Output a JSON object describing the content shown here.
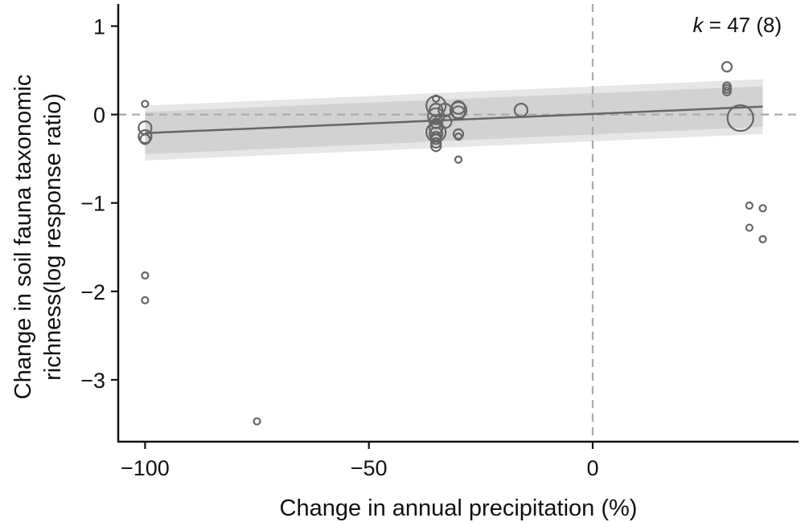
{
  "chart_data": {
    "type": "scatter",
    "xlabel": "Change in annual precipitation (%)",
    "ylabel_lines": [
      "Change in soil fauna taxonomic",
      "richness(log response ratio)"
    ],
    "xlim": [
      -106,
      46
    ],
    "ylim": [
      -3.7,
      1.25
    ],
    "x_ticks": [
      -100,
      -50,
      0
    ],
    "x_tick_labels": [
      "−100",
      "−50",
      "0"
    ],
    "y_ticks": [
      1,
      0,
      -1,
      -2,
      -3
    ],
    "y_tick_labels": [
      "1",
      "0",
      "−1",
      "−2",
      "−3"
    ],
    "annotation": {
      "k_label": "k",
      "text": " = 47 (8)"
    },
    "reference_lines": {
      "x": 0,
      "y": 0,
      "style": "dashed"
    },
    "colors": {
      "points": "#666666",
      "fit_line": "#666666",
      "ci_outer": "#e6e6e6",
      "ci_inner": "#d2d2d2",
      "reference": "#aaaaaa",
      "axis": "#111111"
    },
    "fit_line": {
      "x": [
        -100,
        38
      ],
      "y": [
        -0.21,
        0.09
      ]
    },
    "ci_outer": {
      "x": [
        -100,
        38
      ],
      "lower": [
        -0.52,
        -0.22
      ],
      "upper": [
        0.1,
        0.4
      ]
    },
    "ci_inner": {
      "x": [
        -100,
        38
      ],
      "lower": [
        -0.45,
        -0.14
      ],
      "upper": [
        0.03,
        0.32
      ]
    },
    "points": [
      {
        "x": -100,
        "y": 0.12,
        "size": 1
      },
      {
        "x": -100,
        "y": -0.15,
        "size": 2
      },
      {
        "x": -100,
        "y": -0.25,
        "size": 2
      },
      {
        "x": -100,
        "y": -0.28,
        "size": 1.5
      },
      {
        "x": -100,
        "y": -1.82,
        "size": 1
      },
      {
        "x": -100,
        "y": -2.1,
        "size": 1
      },
      {
        "x": -75,
        "y": -3.47,
        "size": 1
      },
      {
        "x": -35,
        "y": 0.18,
        "size": 1
      },
      {
        "x": -35,
        "y": 0.1,
        "size": 3
      },
      {
        "x": -35,
        "y": 0.05,
        "size": 2
      },
      {
        "x": -35,
        "y": -0.02,
        "size": 2.5
      },
      {
        "x": -35,
        "y": -0.08,
        "size": 2
      },
      {
        "x": -35,
        "y": -0.1,
        "size": 1.5
      },
      {
        "x": -35,
        "y": -0.15,
        "size": 2
      },
      {
        "x": -35,
        "y": -0.2,
        "size": 3
      },
      {
        "x": -35,
        "y": -0.22,
        "size": 2
      },
      {
        "x": -35,
        "y": -0.25,
        "size": 1.5
      },
      {
        "x": -35,
        "y": -0.28,
        "size": 1.5
      },
      {
        "x": -35,
        "y": -0.32,
        "size": 1.5
      },
      {
        "x": -35,
        "y": -0.36,
        "size": 1.5
      },
      {
        "x": -33,
        "y": 0.05,
        "size": 2
      },
      {
        "x": -33,
        "y": -0.08,
        "size": 2
      },
      {
        "x": -30,
        "y": 0.08,
        "size": 2
      },
      {
        "x": -30,
        "y": 0.05,
        "size": 2.5
      },
      {
        "x": -30,
        "y": 0.02,
        "size": 2
      },
      {
        "x": -30,
        "y": -0.22,
        "size": 1.5
      },
      {
        "x": -30,
        "y": -0.25,
        "size": 1
      },
      {
        "x": -30,
        "y": -0.51,
        "size": 1
      },
      {
        "x": -16,
        "y": 0.05,
        "size": 2
      },
      {
        "x": 30,
        "y": 0.54,
        "size": 1.5
      },
      {
        "x": 30,
        "y": 0.32,
        "size": 1.2
      },
      {
        "x": 30,
        "y": 0.29,
        "size": 1.2
      },
      {
        "x": 30,
        "y": 0.26,
        "size": 1.2
      },
      {
        "x": 33,
        "y": -0.04,
        "size": 4
      },
      {
        "x": 35,
        "y": -1.03,
        "size": 1
      },
      {
        "x": 38,
        "y": -1.06,
        "size": 1
      },
      {
        "x": 35,
        "y": -1.28,
        "size": 1
      },
      {
        "x": 38,
        "y": -1.41,
        "size": 1
      }
    ]
  }
}
